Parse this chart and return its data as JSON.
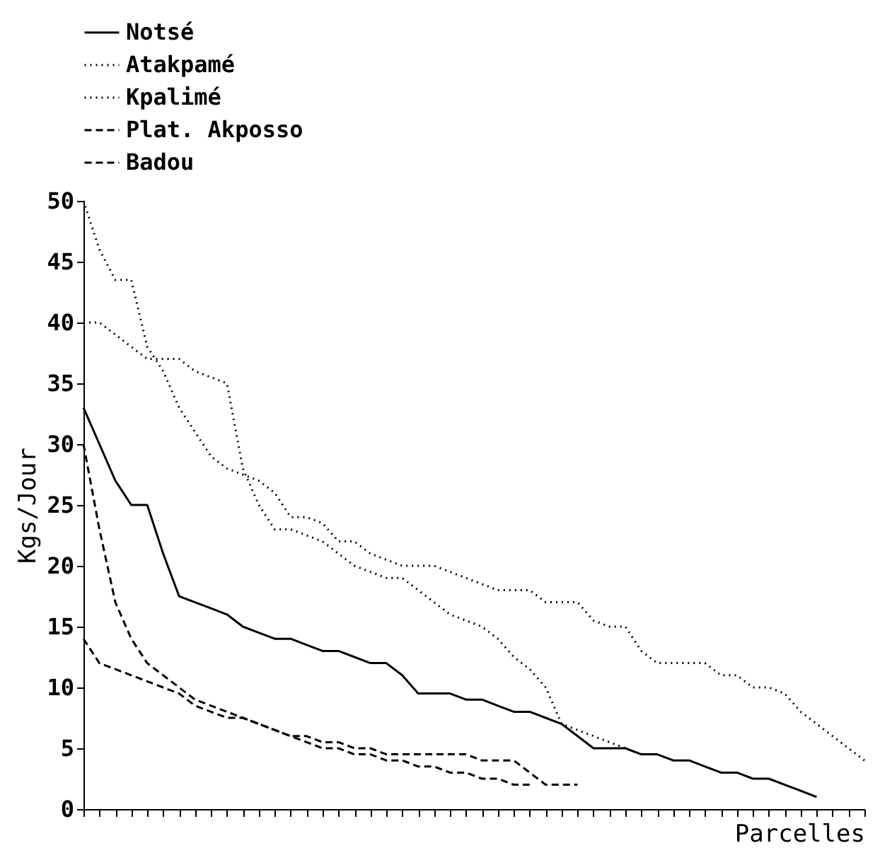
{
  "chart_data": {
    "type": "line",
    "xlabel": "Parcelles",
    "ylabel": "Kgs/Jour",
    "categories": [
      null,
      null,
      null,
      null,
      null,
      null,
      null,
      null,
      null,
      null,
      null,
      null,
      null,
      null,
      null,
      null,
      null,
      null,
      null,
      null,
      null,
      null,
      null,
      null,
      null,
      null,
      null,
      null,
      null,
      null,
      null,
      null,
      null,
      null,
      null,
      null,
      null,
      null,
      null,
      null,
      null,
      null,
      null,
      null,
      null,
      null,
      null,
      null,
      null,
      null
    ],
    "series": [
      {
        "name": "Notsé",
        "color": "#000000",
        "line_style": "solid",
        "values": [
          33,
          30,
          27,
          25,
          25,
          21,
          17.5,
          17,
          16.5,
          16,
          15,
          14.5,
          14,
          14,
          13.5,
          13,
          13,
          12.5,
          12,
          12,
          11,
          9.5,
          9.5,
          9.5,
          9,
          9,
          8.5,
          8,
          8,
          7.5,
          7,
          6,
          5,
          5,
          5,
          4.5,
          4.5,
          4,
          4,
          3.5,
          3,
          3,
          2.5,
          2.5,
          2,
          1.5,
          1,
          null,
          null,
          null
        ]
      },
      {
        "name": "Atakpamé",
        "color": "#000000",
        "line_style": "dotted",
        "values": [
          50,
          46,
          43.5,
          43.5,
          38,
          36,
          33,
          31,
          29,
          28,
          27.5,
          27,
          26,
          24,
          24,
          23.5,
          22,
          22,
          21,
          20.5,
          20,
          20,
          20,
          19.5,
          19,
          18.5,
          18,
          18,
          18,
          17,
          17,
          17,
          15.5,
          15,
          15,
          13,
          12,
          12,
          12,
          12,
          11,
          11,
          10,
          10,
          9.5,
          8,
          7,
          6,
          5,
          4
        ]
      },
      {
        "name": "Kpalimé",
        "color": "#000000",
        "line_style": "dotted",
        "values": [
          40,
          40,
          39,
          38,
          37,
          37,
          37,
          36,
          35.5,
          35,
          28,
          25,
          23,
          23,
          22.5,
          22,
          21,
          20,
          19.5,
          19,
          19,
          18,
          17,
          16,
          15.5,
          15,
          14,
          12.5,
          11.5,
          10,
          7,
          6.5,
          6,
          5.5,
          5,
          null,
          null,
          null,
          null,
          null,
          null,
          null,
          null,
          null,
          null,
          null,
          null,
          null,
          null,
          null
        ]
      },
      {
        "name": "Plat. Akposso",
        "color": "#000000",
        "line_style": "dashed",
        "values": [
          30,
          23,
          17,
          14,
          12,
          11,
          10,
          9,
          8.5,
          8,
          7.5,
          7,
          6.5,
          6,
          5.5,
          5,
          5,
          4.5,
          4.5,
          4,
          4,
          3.5,
          3.5,
          3,
          3,
          2.5,
          2.5,
          2,
          2,
          null,
          null,
          null,
          null,
          null,
          null,
          null,
          null,
          null,
          null,
          null,
          null,
          null,
          null,
          null,
          null,
          null,
          null,
          null,
          null,
          null
        ]
      },
      {
        "name": "Badou",
        "color": "#000000",
        "line_style": "dashed",
        "values": [
          14,
          12,
          11.5,
          11,
          10.5,
          10,
          9.5,
          8.5,
          8,
          7.5,
          7.5,
          7,
          6.5,
          6,
          6,
          5.5,
          5.5,
          5,
          5,
          4.5,
          4.5,
          4.5,
          4.5,
          4.5,
          4.5,
          4,
          4,
          4,
          3,
          2,
          2,
          2,
          null,
          null,
          null,
          null,
          null,
          null,
          null,
          null,
          null,
          null,
          null,
          null,
          null,
          null,
          null,
          null,
          null,
          null
        ]
      }
    ],
    "ylim": [
      0,
      50
    ],
    "yticks": [
      0,
      5,
      10,
      15,
      20,
      25,
      30,
      35,
      40,
      45,
      50
    ],
    "grid": false,
    "legend": "top left",
    "tick_labels": "y",
    "marker": "none"
  }
}
